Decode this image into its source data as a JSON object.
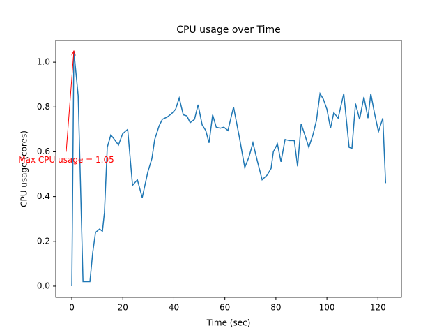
{
  "chart_data": {
    "type": "line",
    "title": "CPU usage over Time",
    "x_label": "Time (sec)",
    "y_label": "CPU usage (cores)",
    "x": [
      0,
      0.8,
      2.5,
      4.4,
      5.5,
      7.1,
      8.2,
      9.3,
      10.9,
      12.0,
      12.8,
      13.9,
      15.3,
      16.7,
      18.3,
      19.9,
      21.9,
      23.8,
      25.7,
      27.6,
      29.8,
      31.4,
      32.5,
      34.2,
      35.5,
      37.4,
      39.1,
      40.7,
      42.1,
      43.7,
      45.1,
      46.4,
      48.1,
      49.5,
      51.1,
      52.5,
      53.8,
      55.2,
      56.6,
      58.2,
      59.6,
      61.2,
      63.4,
      65.6,
      67.8,
      69.4,
      71.0,
      72.7,
      74.6,
      76.5,
      78.1,
      79.0,
      80.6,
      82.0,
      83.6,
      85.2,
      87.2,
      88.5,
      89.9,
      91.5,
      92.9,
      94.5,
      95.9,
      97.3,
      98.6,
      100.0,
      101.4,
      102.7,
      104.4,
      106.6,
      108.7,
      109.8,
      111.2,
      112.8,
      114.5,
      116.1,
      117.2,
      118.6,
      120.2,
      121.9,
      123.0
    ],
    "series": [
      {
        "name": "CPU usage",
        "color": "#1f77b4",
        "values": [
          0,
          1.05,
          0.85,
          0.02,
          0.02,
          0.02,
          0.15,
          0.24,
          0.255,
          0.245,
          0.33,
          0.62,
          0.675,
          0.655,
          0.63,
          0.68,
          0.7,
          0.45,
          0.475,
          0.395,
          0.51,
          0.57,
          0.655,
          0.715,
          0.745,
          0.755,
          0.77,
          0.79,
          0.84,
          0.765,
          0.76,
          0.73,
          0.745,
          0.81,
          0.72,
          0.695,
          0.64,
          0.765,
          0.71,
          0.705,
          0.71,
          0.695,
          0.8,
          0.67,
          0.53,
          0.575,
          0.64,
          0.56,
          0.475,
          0.495,
          0.525,
          0.6,
          0.635,
          0.555,
          0.655,
          0.65,
          0.65,
          0.535,
          0.725,
          0.67,
          0.62,
          0.675,
          0.74,
          0.86,
          0.835,
          0.79,
          0.705,
          0.775,
          0.75,
          0.86,
          0.62,
          0.615,
          0.815,
          0.745,
          0.845,
          0.75,
          0.86,
          0.775,
          0.69,
          0.75,
          0.46
        ]
      }
    ],
    "xlim": [
      -6.3,
      129.2
    ],
    "ylim": [
      -0.05,
      1.097
    ],
    "xticks": [
      0,
      20,
      40,
      60,
      80,
      100,
      120
    ],
    "yticks": [
      {
        "value": 0,
        "label": "0.0"
      },
      0.2,
      0.4,
      0.6,
      0.8,
      {
        "value": 1,
        "label": "1.0"
      }
    ],
    "annotation": {
      "text": "Max CPU usage = 1.05",
      "color": "#ff0000",
      "xy": [
        0.8,
        1.05
      ],
      "xytext": [
        -2.2,
        0.6
      ]
    }
  }
}
